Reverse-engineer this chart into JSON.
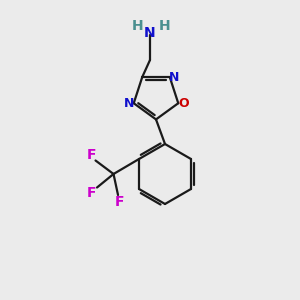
{
  "background_color": "#ebebeb",
  "bond_color": "#1a1a1a",
  "bond_width": 1.6,
  "N_color": "#1010cc",
  "O_color": "#cc0000",
  "F_color": "#cc00cc",
  "NH_color": "#4a9090",
  "figsize": [
    3.0,
    3.0
  ],
  "dpi": 100,
  "xlim": [
    0,
    10
  ],
  "ylim": [
    0,
    10
  ]
}
